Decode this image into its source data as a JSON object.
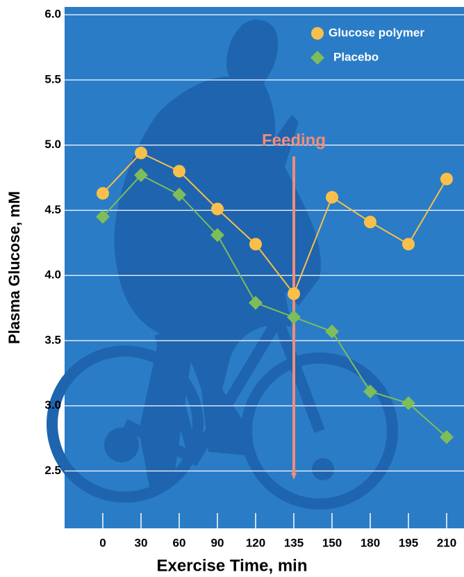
{
  "chart_data": {
    "type": "line",
    "xlabel": "Exercise Time, min",
    "ylabel": "Plasma Glucose, mM",
    "categories": [
      "0",
      "30",
      "60",
      "90",
      "120",
      "135",
      "150",
      "180",
      "195",
      "210"
    ],
    "series": [
      {
        "name": "Glucose polymer",
        "color": "#f8c04a",
        "marker": "circle",
        "values": [
          4.63,
          4.94,
          4.8,
          4.51,
          4.24,
          3.86,
          4.6,
          4.41,
          4.24,
          4.74
        ]
      },
      {
        "name": "Placebo",
        "color": "#7dbd5a",
        "marker": "diamond",
        "values": [
          4.45,
          4.77,
          4.62,
          4.31,
          3.79,
          3.68,
          3.57,
          3.11,
          3.02,
          2.76
        ]
      }
    ],
    "ylim": [
      2.06,
      6.06
    ],
    "yticks": [
      {
        "value": 2.5,
        "label": "2.5"
      },
      {
        "value": 3,
        "label": "3.0"
      },
      {
        "value": 3.5,
        "label": "3.5"
      },
      {
        "value": 4,
        "label": "4.0"
      },
      {
        "value": 4.5,
        "label": "4.5"
      },
      {
        "value": 5,
        "label": "5.0"
      },
      {
        "value": 5.5,
        "label": "5.5"
      },
      {
        "value": 6,
        "label": "6.0"
      }
    ],
    "grid": true,
    "legend": "upper right",
    "annotation": {
      "text": "Feeding",
      "x": "135",
      "color": "#f08c78"
    }
  }
}
